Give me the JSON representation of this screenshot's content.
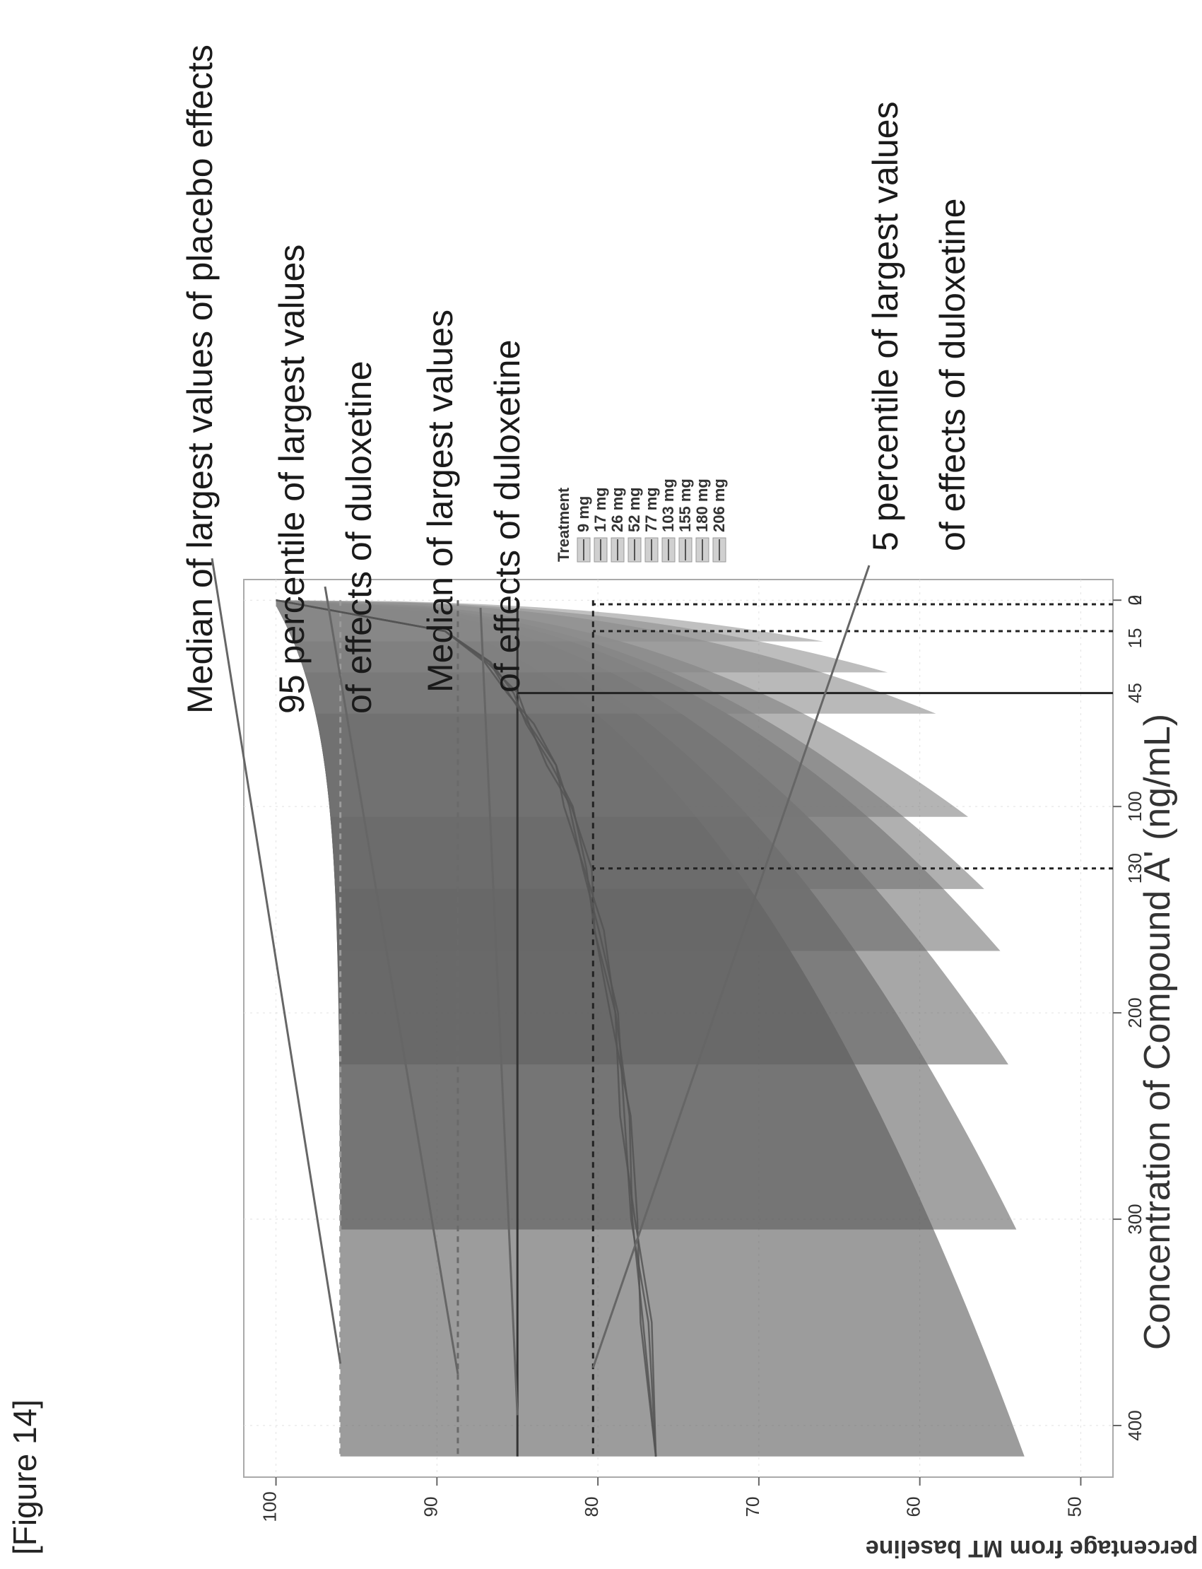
{
  "figure_label": "[Figure 14]",
  "chart_data": {
    "type": "line",
    "title": "",
    "xlabel": "Concentration of Compound A' (ng/mL)",
    "ylabel": "percentage from MT baseline",
    "xlim": [
      -10,
      425
    ],
    "ylim": [
      48,
      102
    ],
    "x_ticks": [
      0,
      100,
      200,
      300,
      400
    ],
    "y_ticks": [
      50,
      60,
      70,
      80,
      90,
      100
    ],
    "grid": true,
    "marker_lines": [
      {
        "x": 2,
        "label": "2",
        "style": "dashed"
      },
      {
        "x": 15,
        "label": "15",
        "style": "dashed"
      },
      {
        "x": 45,
        "label": "45",
        "style": "solid"
      },
      {
        "x": 130,
        "label": "130",
        "style": "dashed"
      }
    ],
    "reference_lines": [
      {
        "name": "Median of largest values of placebo effects",
        "y": 96,
        "style": "dashed",
        "color": "#9a9a9a"
      },
      {
        "name": "95 percentile of largest values of effects of duloxetine",
        "y": 88.7,
        "style": "dashed",
        "color": "#6a6a6a"
      },
      {
        "name": "Median of largest values of effects of duloxetine",
        "y": 85,
        "style": "solid",
        "color": "#333333"
      },
      {
        "name": "5 percentile of largest values of effects of duloxetine",
        "y": 80.3,
        "style": "dashed",
        "color": "#222222"
      }
    ],
    "annotations": [
      {
        "lines": [
          "Median of largest values of placebo effects"
        ]
      },
      {
        "lines": [
          "95 percentile of largest values",
          "of effects of duloxetine"
        ]
      },
      {
        "lines": [
          "Median of largest values",
          "of effects of duloxetine"
        ]
      },
      {
        "lines": [
          "5 percentile of largest values",
          "of effects of duloxetine"
        ]
      }
    ],
    "legend": {
      "title": "Treatment",
      "position": "right",
      "entries": [
        "9 mg",
        "17 mg",
        "26 mg",
        "52 mg",
        "77 mg",
        "103 mg",
        "155 mg",
        "180 mg",
        "206 mg"
      ]
    },
    "bands": [
      {
        "name": "9 mg",
        "x_max": 20,
        "lower_end": 66
      },
      {
        "name": "17 mg",
        "x_max": 35,
        "lower_end": 62
      },
      {
        "name": "26 mg",
        "x_max": 55,
        "lower_end": 59
      },
      {
        "name": "52 mg",
        "x_max": 105,
        "lower_end": 57
      },
      {
        "name": "77 mg",
        "x_max": 140,
        "lower_end": 56
      },
      {
        "name": "103 mg",
        "x_max": 170,
        "lower_end": 55
      },
      {
        "name": "155 mg",
        "x_max": 225,
        "lower_end": 54.5
      },
      {
        "name": "180 mg",
        "x_max": 305,
        "lower_end": 54
      },
      {
        "name": "206 mg",
        "x_max": 415,
        "lower_end": 53.5
      }
    ],
    "median_curve": {
      "x": [
        0,
        15,
        30,
        45,
        60,
        80,
        100,
        130,
        160,
        200,
        250,
        300,
        350,
        415
      ],
      "y": [
        100,
        89.5,
        87.0,
        85.3,
        84.1,
        82.9,
        81.9,
        80.6,
        79.9,
        79.1,
        78.3,
        77.6,
        77.0,
        76.4
      ]
    }
  }
}
